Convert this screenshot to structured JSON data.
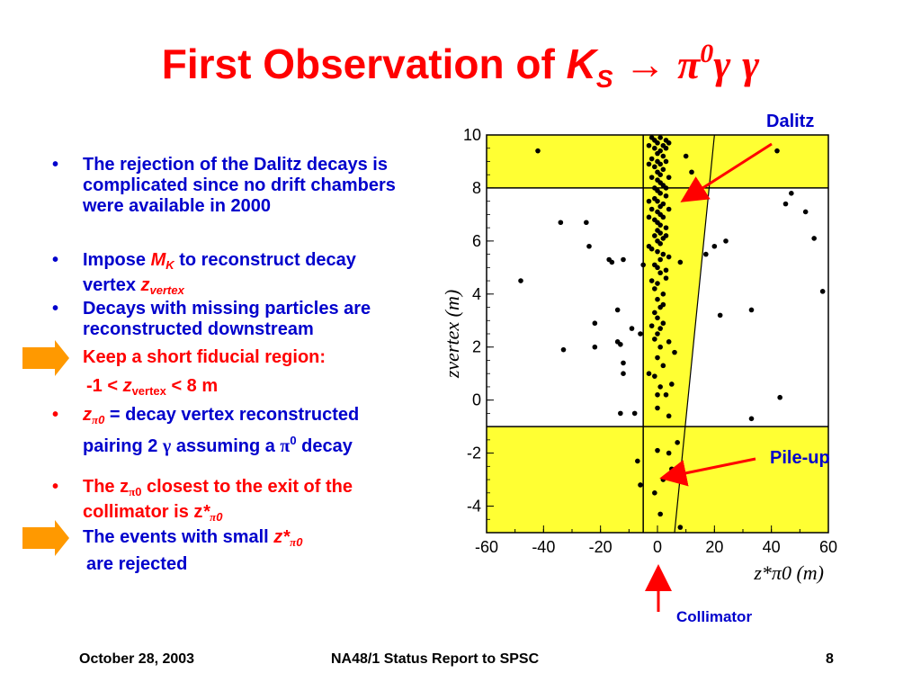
{
  "slide": {
    "title_text": "First Observation of ",
    "title_k": "K",
    "title_k_sub": "S",
    "title_arrow": "→",
    "title_pi": "π",
    "title_pi_sup": "0",
    "title_gamma1": "γ",
    "title_gamma2": "γ",
    "bullet1": "The rejection of the Dalitz decays is complicated since no drift chambers were available in 2000",
    "bullet2_a": "Impose ",
    "bullet2_mk": "M",
    "bullet2_mk_sub": "K",
    "bullet2_b": " to reconstruct decay vertex ",
    "bullet2_z": "z",
    "bullet2_z_sub": "vertex",
    "bullet3": "Decays with missing particles are reconstructed downstream",
    "keep_line": "Keep a short fiducial region:",
    "range_a": "-1 < ",
    "range_z": "z",
    "range_sub": "vertex",
    "range_b": " <  8 m",
    "bullet4_z": "z",
    "bullet4_sub_pi": "π",
    "bullet4_sub_0": "0",
    "bullet4_a": " = decay vertex reconstructed pairing 2 ",
    "bullet4_gamma": "γ",
    "bullet4_b": " assuming  a ",
    "bullet4_pi": "π",
    "bullet4_pi_sup": "0",
    "bullet4_c": " decay",
    "bullet5_a": "The z",
    "bullet5_sub_pi": "π",
    "bullet5_sub_0": "0",
    "bullet5_b": "  closest to the exit of the collimator is  z",
    "bullet5_star": "*",
    "bullet5_sub2_pi": "π",
    "bullet5_sub2_0": "0",
    "events_a": "The events with small ",
    "events_z": "z*",
    "events_sub_pi": "π",
    "events_sub_0": "0",
    "events_b": "are rejected",
    "bullet_char": "•",
    "footer_date": "October 28, 2003",
    "footer_title": "NA48/1 Status Report to SPSC",
    "footer_page": "8",
    "annot_dalitz": "Dalitz",
    "annot_pileup": "Pile-up",
    "annot_collimator": "Collimator"
  },
  "colors": {
    "title": "#ff0000",
    "bullet_text": "#0000cc",
    "highlight": "#ff0000",
    "arrow_fill": "#ff9900",
    "band": "#ffff33",
    "annotation": "#0000cc",
    "annot_arrow": "#ff0000"
  },
  "chart_data": {
    "type": "scatter",
    "title": "",
    "xlabel": "z*π0 (m)",
    "ylabel": "zvertex (m)",
    "xlim": [
      -60,
      60
    ],
    "ylim": [
      -5,
      10
    ],
    "x_ticks": [
      "-60",
      "-40",
      "-20",
      "0",
      "20",
      "40",
      "60"
    ],
    "y_ticks": [
      "10",
      "8",
      "6",
      "4",
      "2",
      "0",
      "-2",
      "-4"
    ],
    "x_tick_values": [
      -60,
      -40,
      -20,
      0,
      20,
      40,
      60
    ],
    "y_tick_values": [
      10,
      8,
      6,
      4,
      2,
      0,
      -2,
      -4
    ],
    "hlines": [
      8,
      -1
    ],
    "yellow_bands": [
      [
        8,
        10
      ],
      [
        -5,
        -1
      ]
    ],
    "collimator_x": -5,
    "diagonal": {
      "x_at_top": 20,
      "y_top": 10,
      "x_at_bottom": 6,
      "y_bottom": -5
    },
    "points": [
      [
        -42,
        9.4
      ],
      [
        -48,
        4.5
      ],
      [
        -34,
        6.7
      ],
      [
        -25,
        6.7
      ],
      [
        -24,
        5.8
      ],
      [
        -17,
        5.3
      ],
      [
        -16,
        5.2
      ],
      [
        -12,
        5.3
      ],
      [
        -5,
        5.1
      ],
      [
        -22,
        2.9
      ],
      [
        -22,
        2.0
      ],
      [
        -33,
        1.9
      ],
      [
        -14,
        2.2
      ],
      [
        -13,
        2.1
      ],
      [
        -12,
        1.4
      ],
      [
        -12,
        1.0
      ],
      [
        -9,
        2.7
      ],
      [
        -6,
        2.5
      ],
      [
        -13,
        -0.5
      ],
      [
        -8,
        -0.5
      ],
      [
        -7,
        -2.3
      ],
      [
        -6,
        -3.2
      ],
      [
        -14,
        3.4
      ],
      [
        -3,
        1.0
      ],
      [
        20,
        5.8
      ],
      [
        17,
        5.5
      ],
      [
        24,
        6.0
      ],
      [
        22,
        3.2
      ],
      [
        33,
        3.4
      ],
      [
        42,
        9.4
      ],
      [
        47,
        7.8
      ],
      [
        45,
        7.4
      ],
      [
        52,
        7.1
      ],
      [
        55,
        6.1
      ],
      [
        58,
        4.1
      ],
      [
        43,
        0.1
      ],
      [
        33,
        -0.7
      ],
      [
        10,
        9.2
      ],
      [
        12,
        8.6
      ],
      [
        8,
        5.2
      ],
      [
        6,
        1.8
      ],
      [
        4,
        2.2
      ],
      [
        5,
        0.6
      ],
      [
        3,
        0.2
      ],
      [
        4,
        -0.6
      ],
      [
        7,
        -1.6
      ],
      [
        4,
        -2.0
      ],
      [
        5,
        -2.6
      ],
      [
        2,
        -3.0
      ],
      [
        -1,
        -3.5
      ],
      [
        1,
        -4.3
      ],
      [
        8,
        -4.8
      ],
      [
        0,
        -1.9
      ],
      [
        -2,
        9.9
      ],
      [
        -1,
        9.8
      ],
      [
        0,
        9.7
      ],
      [
        1,
        9.9
      ],
      [
        2,
        9.6
      ],
      [
        3,
        9.8
      ],
      [
        -1,
        9.5
      ],
      [
        0,
        9.3
      ],
      [
        1,
        9.4
      ],
      [
        2,
        9.2
      ],
      [
        -2,
        9.1
      ],
      [
        0,
        9.0
      ],
      [
        1,
        8.9
      ],
      [
        3,
        9.0
      ],
      [
        -1,
        8.8
      ],
      [
        0,
        8.6
      ],
      [
        2,
        8.7
      ],
      [
        1,
        8.5
      ],
      [
        -2,
        8.4
      ],
      [
        0,
        8.3
      ],
      [
        1,
        8.2
      ],
      [
        2,
        8.1
      ],
      [
        -1,
        8.0
      ],
      [
        0,
        7.9
      ],
      [
        1,
        7.8
      ],
      [
        3,
        7.7
      ],
      [
        -1,
        7.6
      ],
      [
        0,
        7.5
      ],
      [
        2,
        7.4
      ],
      [
        1,
        7.3
      ],
      [
        -2,
        7.2
      ],
      [
        0,
        7.1
      ],
      [
        1,
        7.0
      ],
      [
        2,
        6.9
      ],
      [
        -1,
        6.8
      ],
      [
        0,
        6.7
      ],
      [
        1,
        6.6
      ],
      [
        3,
        6.5
      ],
      [
        0,
        6.4
      ],
      [
        1,
        6.3
      ],
      [
        -1,
        6.2
      ],
      [
        2,
        6.1
      ],
      [
        0,
        6.0
      ],
      [
        1,
        5.9
      ],
      [
        -2,
        5.7
      ],
      [
        0,
        5.6
      ],
      [
        2,
        5.5
      ],
      [
        1,
        5.3
      ],
      [
        -1,
        5.1
      ],
      [
        0,
        5.0
      ],
      [
        1,
        4.8
      ],
      [
        3,
        4.6
      ],
      [
        0,
        4.4
      ],
      [
        -1,
        4.2
      ],
      [
        2,
        4.0
      ],
      [
        0,
        3.8
      ],
      [
        1,
        3.5
      ],
      [
        -1,
        3.3
      ],
      [
        0,
        3.1
      ],
      [
        2,
        2.9
      ],
      [
        1,
        2.7
      ],
      [
        0,
        2.5
      ],
      [
        -1,
        2.3
      ],
      [
        1,
        2.0
      ],
      [
        0,
        1.6
      ],
      [
        2,
        1.3
      ],
      [
        -1,
        0.9
      ],
      [
        1,
        0.5
      ],
      [
        0,
        0.2
      ],
      [
        0,
        -0.3
      ],
      [
        3,
        9.5
      ],
      [
        4,
        9.7
      ],
      [
        -3,
        9.6
      ],
      [
        -3,
        8.9
      ],
      [
        4,
        8.4
      ],
      [
        3,
        8.0
      ],
      [
        -3,
        7.5
      ],
      [
        4,
        7.2
      ],
      [
        -3,
        6.9
      ],
      [
        3,
        6.2
      ],
      [
        -3,
        5.8
      ],
      [
        4,
        5.4
      ],
      [
        3,
        4.9
      ],
      [
        -2,
        4.5
      ],
      [
        2,
        3.6
      ],
      [
        -2,
        2.8
      ]
    ]
  }
}
